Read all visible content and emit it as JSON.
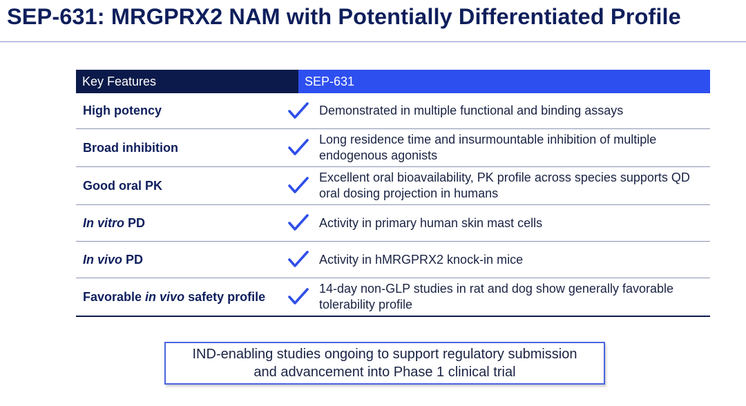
{
  "title": "SEP-631: MRGPRX2 NAM with Potentially Differentiated Profile",
  "table": {
    "header": {
      "features": "Key Features",
      "compound": "SEP-631"
    },
    "rows": [
      {
        "feature_pre": "High potency",
        "feature_italic": "",
        "feature_post": "",
        "check": "checkmark-icon",
        "description": "Demonstrated in multiple functional and binding assays"
      },
      {
        "feature_pre": "Broad inhibition",
        "feature_italic": "",
        "feature_post": "",
        "check": "checkmark-icon",
        "description": "Long residence time and insurmountable inhibition of multiple endogenous agonists"
      },
      {
        "feature_pre": "Good oral PK",
        "feature_italic": "",
        "feature_post": "",
        "check": "checkmark-icon",
        "description": "Excellent oral bioavailability, PK profile across species supports QD oral dosing projection in humans"
      },
      {
        "feature_pre": "",
        "feature_italic": "In vitro",
        "feature_post": " PD",
        "check": "checkmark-icon",
        "description": "Activity in primary human skin mast cells"
      },
      {
        "feature_pre": "",
        "feature_italic": "In vivo",
        "feature_post": " PD",
        "check": "checkmark-icon",
        "description": "Activity in hMRGPRX2 knock-in mice"
      },
      {
        "feature_pre": "Favorable ",
        "feature_italic": "in vivo",
        "feature_post": " safety profile",
        "check": "checkmark-icon",
        "description": "14-day non-GLP studies in rat and dog show generally favorable tolerability profile"
      }
    ]
  },
  "callout": {
    "line1": "IND-enabling studies ongoing to support regulatory submission",
    "line2": "and advancement into Phase 1 clinical trial"
  },
  "colors": {
    "title": "#0f1f5c",
    "header_dark": "#0b1a4a",
    "header_blue": "#2e4ff0",
    "check": "#2f4fe8",
    "callout_border": "#4a63e0"
  }
}
